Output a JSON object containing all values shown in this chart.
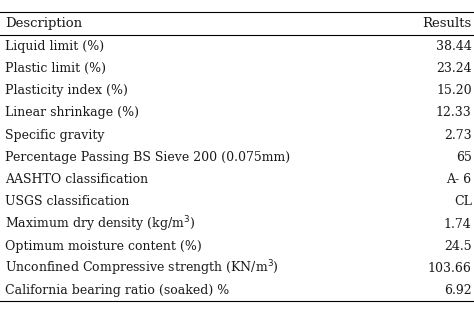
{
  "headers": [
    "Description",
    "Results"
  ],
  "rows": [
    [
      "Liquid limit (%)",
      "38.44"
    ],
    [
      "Plastic limit (%)",
      "23.24"
    ],
    [
      "Plasticity index (%)",
      "15.20"
    ],
    [
      "Linear shrinkage (%)",
      "12.33"
    ],
    [
      "Specific gravity",
      "2.73"
    ],
    [
      "Percentage Passing BS Sieve 200 (0.075mm)",
      "65"
    ],
    [
      "AASHTO classification",
      "A- 6"
    ],
    [
      "USGS classification",
      "CL"
    ],
    [
      "Maximum dry density (kg/m$^3$)",
      "1.74"
    ],
    [
      "Optimum moisture content (%)",
      "24.5"
    ],
    [
      "Unconfined Compressive strength (KN/m$^3$)",
      "103.66"
    ],
    [
      "California bearing ratio (soaked) %",
      "6.92"
    ]
  ],
  "bg_color": "#ffffff",
  "text_color": "#1a1a1a",
  "line_color": "#000000",
  "font_size": 9.0,
  "header_font_size": 9.5,
  "figwidth": 4.74,
  "figheight": 3.09,
  "dpi": 100
}
